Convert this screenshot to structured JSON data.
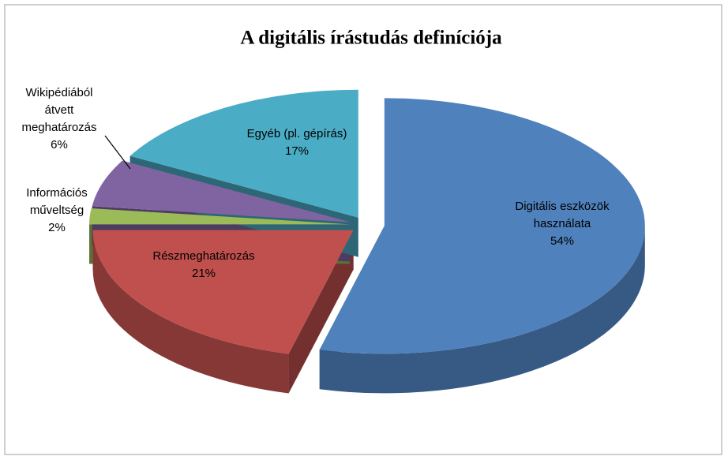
{
  "chart_data": {
    "type": "pie3d",
    "title": "A digitális írástudás definíciója",
    "categories": [
      "Digitális eszközök használata",
      "Részmeghatározás",
      "Információs műveltség",
      "Wikipédiából átvett meghatározás",
      "Egyéb (pl. gépírás)"
    ],
    "values": [
      54,
      21,
      2,
      6,
      17
    ],
    "value_labels": [
      "54%",
      "21%",
      "2%",
      "6%",
      "17%"
    ],
    "colors": [
      "#4f81bd",
      "#c0504d",
      "#9bbb59",
      "#8064a2",
      "#4bacc6"
    ]
  }
}
